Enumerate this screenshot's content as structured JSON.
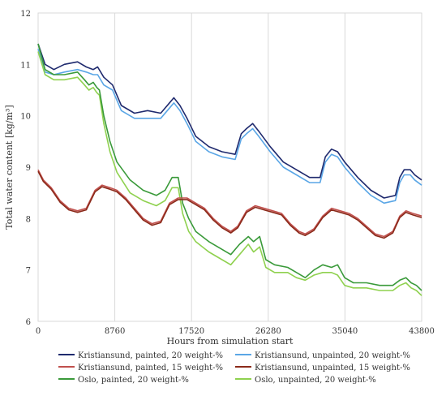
{
  "chart_data": {
    "type": "line",
    "xlabel": "Hours from simulation start",
    "ylabel": "Total water content [kg/m³]",
    "xlim": [
      0,
      43800
    ],
    "ylim": [
      6,
      12
    ],
    "xticks": [
      0,
      8760,
      17520,
      26280,
      35040,
      43800
    ],
    "yticks": [
      6,
      7,
      8,
      9,
      10,
      11,
      12
    ],
    "grid": "vertical",
    "legend_position": "bottom",
    "series": [
      {
        "name": "Kristiansund, painted, 20 weight-%",
        "color": "#1f2a6e",
        "x": [
          0,
          800,
          1800,
          3000,
          4500,
          5500,
          6300,
          6800,
          7500,
          8500,
          9500,
          11000,
          12500,
          14000,
          15000,
          15500,
          16200,
          17000,
          18000,
          19500,
          21000,
          22500,
          23200,
          23800,
          24500,
          25200,
          26500,
          28000,
          29500,
          31000,
          32200,
          32800,
          33500,
          34200,
          35000,
          36500,
          38000,
          39500,
          40800,
          41300,
          41800,
          42500,
          43000,
          43800
        ],
        "values": [
          11.4,
          11.0,
          10.9,
          11.0,
          11.05,
          10.95,
          10.9,
          10.95,
          10.75,
          10.6,
          10.2,
          10.05,
          10.1,
          10.05,
          10.25,
          10.35,
          10.2,
          9.95,
          9.6,
          9.4,
          9.3,
          9.25,
          9.65,
          9.75,
          9.85,
          9.7,
          9.4,
          9.1,
          8.95,
          8.8,
          8.8,
          9.2,
          9.35,
          9.3,
          9.1,
          8.8,
          8.55,
          8.4,
          8.45,
          8.8,
          8.95,
          8.95,
          8.85,
          8.75
        ]
      },
      {
        "name": "Kristiansund, unpainted, 20 weight-%",
        "color": "#5aa6e6",
        "x": [
          0,
          800,
          1800,
          3000,
          4500,
          5500,
          6300,
          6800,
          7500,
          8500,
          9500,
          11000,
          12500,
          14000,
          15000,
          15500,
          16200,
          17000,
          18000,
          19500,
          21000,
          22500,
          23200,
          23800,
          24500,
          25200,
          26500,
          28000,
          29500,
          31000,
          32200,
          32800,
          33500,
          34200,
          35000,
          36500,
          38000,
          39500,
          40800,
          41300,
          41800,
          42500,
          43000,
          43800
        ],
        "values": [
          11.3,
          10.85,
          10.8,
          10.85,
          10.9,
          10.85,
          10.8,
          10.8,
          10.6,
          10.5,
          10.1,
          9.95,
          9.95,
          9.95,
          10.15,
          10.25,
          10.1,
          9.85,
          9.5,
          9.3,
          9.2,
          9.15,
          9.55,
          9.65,
          9.75,
          9.6,
          9.3,
          9.0,
          8.85,
          8.7,
          8.7,
          9.1,
          9.25,
          9.2,
          9.0,
          8.7,
          8.45,
          8.3,
          8.35,
          8.7,
          8.85,
          8.85,
          8.75,
          8.65
        ]
      },
      {
        "name": "Kristiansund, painted, 15 weight-%",
        "color": "#c0504d",
        "x": [
          0,
          600,
          1500,
          2500,
          3500,
          4500,
          5500,
          6500,
          7300,
          8200,
          9000,
          10000,
          11000,
          12000,
          13000,
          14000,
          15000,
          16000,
          17000,
          18000,
          19000,
          20000,
          21000,
          22000,
          22800,
          23800,
          24800,
          25800,
          26800,
          27800,
          28800,
          29800,
          30500,
          31500,
          32500,
          33500,
          34500,
          35500,
          36500,
          37500,
          38500,
          39500,
          40500,
          41300,
          42000,
          42800,
          43800
        ],
        "values": [
          8.95,
          8.75,
          8.6,
          8.35,
          8.2,
          8.15,
          8.2,
          8.55,
          8.65,
          8.6,
          8.55,
          8.4,
          8.2,
          8.0,
          7.9,
          7.95,
          8.3,
          8.4,
          8.4,
          8.3,
          8.2,
          8.0,
          7.85,
          7.75,
          7.85,
          8.15,
          8.25,
          8.2,
          8.15,
          8.1,
          7.9,
          7.75,
          7.7,
          7.8,
          8.05,
          8.2,
          8.15,
          8.1,
          8.0,
          7.85,
          7.7,
          7.65,
          7.75,
          8.05,
          8.15,
          8.1,
          8.05
        ]
      },
      {
        "name": "Kristiansund, unpainted, 15 weight-%",
        "color": "#8b2a1a",
        "x": [
          0,
          600,
          1500,
          2500,
          3500,
          4500,
          5500,
          6500,
          7300,
          8200,
          9000,
          10000,
          11000,
          12000,
          13000,
          14000,
          15000,
          16000,
          17000,
          18000,
          19000,
          20000,
          21000,
          22000,
          22800,
          23800,
          24800,
          25800,
          26800,
          27800,
          28800,
          29800,
          30500,
          31500,
          32500,
          33500,
          34500,
          35500,
          36500,
          37500,
          38500,
          39500,
          40500,
          41300,
          42000,
          42800,
          43800
        ],
        "values": [
          8.92,
          8.72,
          8.57,
          8.32,
          8.17,
          8.12,
          8.17,
          8.52,
          8.62,
          8.57,
          8.52,
          8.37,
          8.17,
          7.97,
          7.87,
          7.92,
          8.27,
          8.37,
          8.37,
          8.27,
          8.17,
          7.97,
          7.82,
          7.72,
          7.82,
          8.12,
          8.22,
          8.17,
          8.12,
          8.07,
          7.87,
          7.72,
          7.67,
          7.77,
          8.02,
          8.17,
          8.12,
          8.07,
          7.97,
          7.82,
          7.67,
          7.62,
          7.72,
          8.02,
          8.12,
          8.07,
          8.02
        ]
      },
      {
        "name": "Oslo, painted, 20 weight-%",
        "color": "#3a9a3a",
        "x": [
          0,
          800,
          1800,
          3000,
          4500,
          5300,
          5800,
          6300,
          6700,
          7000,
          7500,
          8200,
          9000,
          10500,
          12000,
          13500,
          14500,
          15300,
          16000,
          16500,
          17200,
          18000,
          19500,
          21000,
          22000,
          23000,
          24000,
          24600,
          25300,
          26000,
          27000,
          28500,
          29500,
          30500,
          31500,
          32500,
          33500,
          34200,
          35000,
          36000,
          37500,
          39000,
          40500,
          41300,
          42000,
          42600,
          43200,
          43800
        ],
        "values": [
          11.4,
          10.9,
          10.8,
          10.8,
          10.85,
          10.7,
          10.6,
          10.65,
          10.55,
          10.5,
          10.0,
          9.5,
          9.1,
          8.75,
          8.55,
          8.45,
          8.55,
          8.8,
          8.8,
          8.3,
          8.0,
          7.75,
          7.55,
          7.4,
          7.3,
          7.5,
          7.65,
          7.55,
          7.65,
          7.2,
          7.1,
          7.05,
          6.95,
          6.85,
          7.0,
          7.1,
          7.05,
          7.1,
          6.85,
          6.75,
          6.75,
          6.7,
          6.7,
          6.8,
          6.85,
          6.75,
          6.7,
          6.6
        ]
      },
      {
        "name": "Oslo, unpainted, 20 weight-%",
        "color": "#8fd14f",
        "x": [
          0,
          800,
          1800,
          3000,
          4500,
          5300,
          5800,
          6300,
          6700,
          7000,
          7500,
          8200,
          9000,
          10500,
          12000,
          13500,
          14500,
          15300,
          16000,
          16500,
          17200,
          18000,
          19500,
          21000,
          22000,
          23000,
          24000,
          24600,
          25300,
          26000,
          27000,
          28500,
          29500,
          30500,
          31500,
          32500,
          33500,
          34200,
          35000,
          36000,
          37500,
          39000,
          40500,
          41300,
          42000,
          42600,
          43200,
          43800
        ],
        "values": [
          11.25,
          10.8,
          10.7,
          10.7,
          10.75,
          10.6,
          10.5,
          10.55,
          10.45,
          10.4,
          9.85,
          9.3,
          8.9,
          8.5,
          8.35,
          8.25,
          8.35,
          8.6,
          8.6,
          8.1,
          7.75,
          7.55,
          7.35,
          7.2,
          7.1,
          7.3,
          7.5,
          7.35,
          7.45,
          7.05,
          6.95,
          6.95,
          6.85,
          6.8,
          6.9,
          6.95,
          6.95,
          6.9,
          6.7,
          6.65,
          6.65,
          6.6,
          6.6,
          6.7,
          6.75,
          6.65,
          6.6,
          6.5
        ]
      }
    ]
  }
}
